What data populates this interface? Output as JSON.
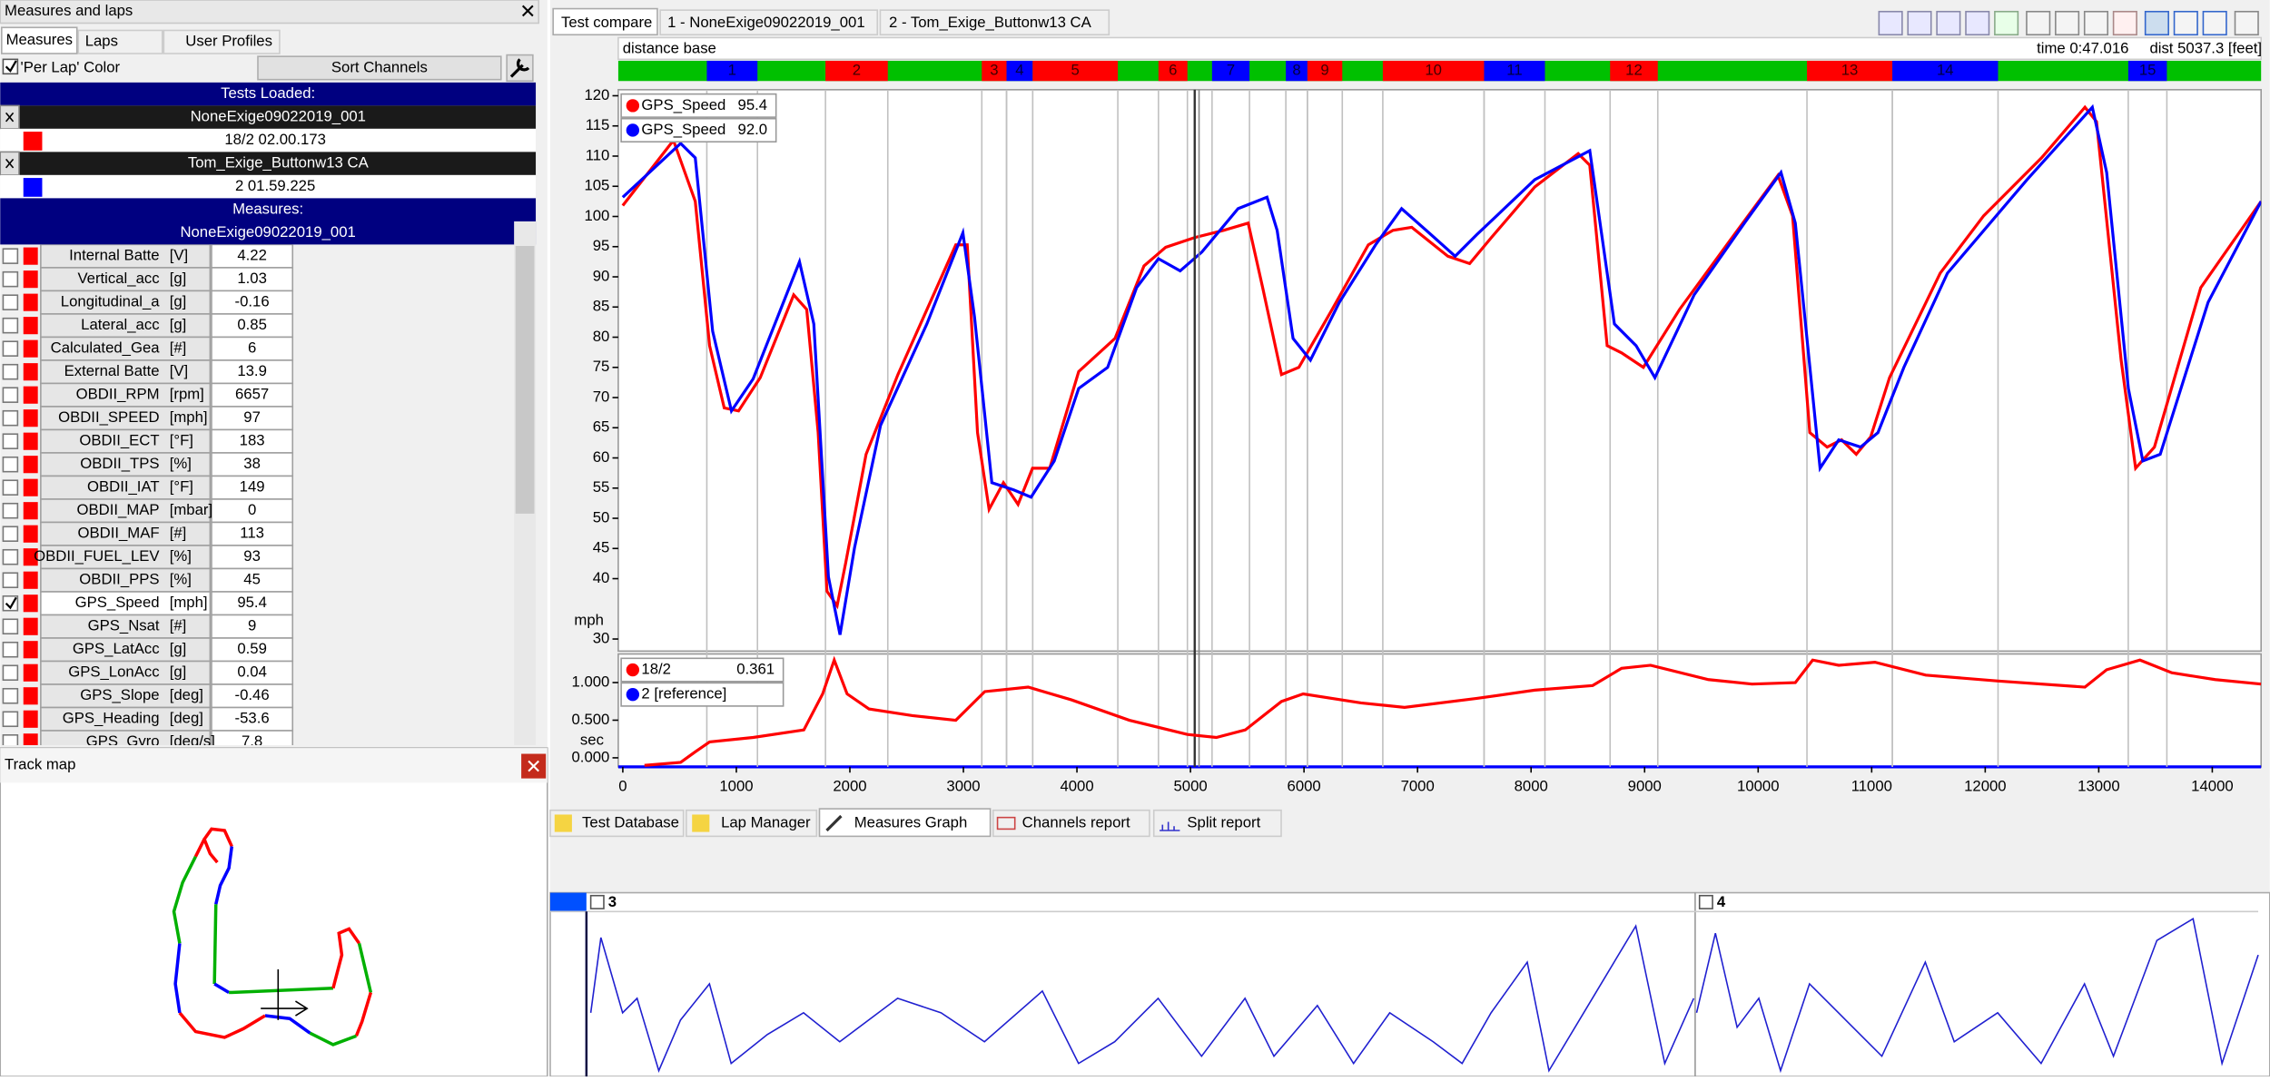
{
  "left_panel": {
    "title": "Measures and laps",
    "tabs": [
      "Measures",
      "Laps",
      "User Profiles"
    ],
    "per_lap_color": "'Per Lap' Color",
    "sort_button": "Sort Channels",
    "tests_loaded": "Tests Loaded:",
    "tests": [
      {
        "name": "NoneExige09022019_001",
        "time": "18/2 02.00.173",
        "color": "#ff0000"
      },
      {
        "name": "Tom_Exige_Buttonw13 CA",
        "time": "2 01.59.225",
        "color": "#0000ff"
      }
    ],
    "measures_header": "Measures:",
    "measures_test": "NoneExige09022019_001",
    "measures": [
      {
        "name": "Internal Batte",
        "unit": "[V]",
        "value": 4.22
      },
      {
        "name": "Vertical_acc",
        "unit": "[g]",
        "value": 1.03
      },
      {
        "name": "Longitudinal_a",
        "unit": "[g]",
        "value": -0.16
      },
      {
        "name": "Lateral_acc",
        "unit": "[g]",
        "value": 0.85
      },
      {
        "name": "Calculated_Gea",
        "unit": "[#]",
        "value": 6
      },
      {
        "name": "External Batte",
        "unit": "[V]",
        "value": 13.9
      },
      {
        "name": "OBDII_RPM",
        "unit": "[rpm]",
        "value": 6657
      },
      {
        "name": "OBDII_SPEED",
        "unit": "[mph]",
        "value": 97
      },
      {
        "name": "OBDII_ECT",
        "unit": "[°F]",
        "value": 183
      },
      {
        "name": "OBDII_TPS",
        "unit": "[%]",
        "value": 38
      },
      {
        "name": "OBDII_IAT",
        "unit": "[°F]",
        "value": 149
      },
      {
        "name": "OBDII_MAP",
        "unit": "[mbar]",
        "value": 0
      },
      {
        "name": "OBDII_MAF",
        "unit": "[#]",
        "value": 113
      },
      {
        "name": "OBDII_FUEL_LEV",
        "unit": "[%]",
        "value": 93
      },
      {
        "name": "OBDII_PPS",
        "unit": "[%]",
        "value": 45
      },
      {
        "name": "GPS_Speed",
        "unit": "[mph]",
        "value": 95.4,
        "selected": true
      },
      {
        "name": "GPS_Nsat",
        "unit": "[#]",
        "value": 9
      },
      {
        "name": "GPS_LatAcc",
        "unit": "[g]",
        "value": 0.59
      },
      {
        "name": "GPS_LonAcc",
        "unit": "[g]",
        "value": 0.04
      },
      {
        "name": "GPS_Slope",
        "unit": "[deg]",
        "value": -0.46
      },
      {
        "name": "GPS_Heading",
        "unit": "[deg]",
        "value": -53.6
      },
      {
        "name": "GPS_Gyro",
        "unit": "[deg/s]",
        "value": 7.8
      }
    ]
  },
  "track_map": {
    "title": "Track map"
  },
  "top_tabs": [
    "Test compare",
    "1 - NoneExige09022019_001",
    "2 - Tom_Exige_Buttonw13 CA"
  ],
  "header": {
    "base": "distance base",
    "time": "time 0:47.016",
    "dist": "dist 5037.3 [feet]"
  },
  "bottom_tabs": [
    "Test Database",
    "Lap Manager",
    "Measures Graph",
    "Channels report",
    "Split report"
  ],
  "panes": [
    "3",
    "4"
  ],
  "chart_data": [
    {
      "type": "line",
      "y_label": "mph",
      "xlim": [
        -40,
        14430
      ],
      "ylim": [
        28,
        121
      ],
      "yticks": [
        120,
        115,
        110,
        105,
        100,
        95,
        90,
        85,
        80,
        75,
        70,
        65,
        60,
        55,
        50,
        45,
        40,
        30
      ],
      "cursor_x": 5037.3,
      "sector_bar_color": "#00c000",
      "sectors": [
        {
          "label": "1",
          "start": 740,
          "end": 1186,
          "color": "#0000ff"
        },
        {
          "label": "2",
          "start": 1785,
          "end": 2334,
          "color": "#ff0000"
        },
        {
          "label": "3",
          "start": 3162,
          "end": 3380,
          "color": "#ff0000"
        },
        {
          "label": "4",
          "start": 3380,
          "end": 3610,
          "color": "#0000ff"
        },
        {
          "label": "5",
          "start": 3610,
          "end": 4360,
          "color": "#ff0000"
        },
        {
          "label": "6",
          "start": 4718,
          "end": 4973,
          "color": "#ff0000"
        },
        {
          "label": "7",
          "start": 5190,
          "end": 5520,
          "color": "#0000ff"
        },
        {
          "label": "8",
          "start": 5840,
          "end": 6030,
          "color": "#0000ff"
        },
        {
          "label": "9",
          "start": 6030,
          "end": 6337,
          "color": "#ff0000"
        },
        {
          "label": "10",
          "start": 6694,
          "end": 7586,
          "color": "#ff0000"
        },
        {
          "label": "11",
          "start": 7586,
          "end": 8122,
          "color": "#0000ff"
        },
        {
          "label": "12",
          "start": 8696,
          "end": 9116,
          "color": "#ff0000"
        },
        {
          "label": "13",
          "start": 10430,
          "end": 11182,
          "color": "#ff0000"
        },
        {
          "label": "14",
          "start": 11182,
          "end": 12113,
          "color": "#0000ff"
        },
        {
          "label": "15",
          "start": 13260,
          "end": 13600,
          "color": "#0000ff"
        }
      ],
      "series": [
        {
          "name": "GPS_Speed",
          "color": "#ff0000",
          "cursor_label": "95.4",
          "x": [
            0,
            446,
            638,
            765,
            893,
            1020,
            1211,
            1505,
            1620,
            1721,
            1798,
            1887,
            1964,
            2142,
            2423,
            2933,
            3034,
            3124,
            3226,
            3353,
            3481,
            3609,
            3761,
            4016,
            4335,
            4590,
            4781,
            5036,
            5291,
            5508,
            5636,
            5801,
            5954,
            6248,
            6566,
            6783,
            6949,
            7268,
            7459,
            7650,
            8033,
            8415,
            8517,
            8670,
            8798,
            8989,
            9308,
            9818,
            10175,
            10303,
            10455,
            10608,
            10736,
            10864,
            10991,
            11157,
            11603,
            11986,
            12496,
            12879,
            12980,
            13197,
            13325,
            13491,
            13899,
            14430
          ],
          "values": [
            101.8,
            112.6,
            102.5,
            78.6,
            68.3,
            67.8,
            73.3,
            87.0,
            84.6,
            64.2,
            37.9,
            35.5,
            42.7,
            60.6,
            73.8,
            95.3,
            95.3,
            64.2,
            51.5,
            55.9,
            52.3,
            58.3,
            58.3,
            74.3,
            79.8,
            91.8,
            94.9,
            96.5,
            97.7,
            98.9,
            88.2,
            73.8,
            75.0,
            84.6,
            95.3,
            97.7,
            98.2,
            93.4,
            92.2,
            96.5,
            104.9,
            110.4,
            108.5,
            78.6,
            77.4,
            75.0,
            84.6,
            97.7,
            106.8,
            100.1,
            64.2,
            61.8,
            63.0,
            60.6,
            63.5,
            73.3,
            90.6,
            100.1,
            109.7,
            118.1,
            115.7,
            76.2,
            58.3,
            61.8,
            88.2,
            102.5
          ]
        },
        {
          "name": "GPS_Speed",
          "color": "#0000ff",
          "cursor_label": "92.0",
          "x": [
            0,
            510,
            638,
            791,
            957,
            1148,
            1556,
            1683,
            1811,
            1913,
            2040,
            2270,
            2678,
            2996,
            3098,
            3251,
            3443,
            3596,
            3800,
            4016,
            4271,
            4526,
            4718,
            4909,
            5100,
            5419,
            5674,
            5763,
            5903,
            6057,
            6312,
            6630,
            6860,
            7077,
            7332,
            7523,
            8033,
            8517,
            8734,
            8925,
            9091,
            9436,
            9882,
            10201,
            10328,
            10545,
            10710,
            10902,
            11055,
            11284,
            11667,
            12369,
            12943,
            13070,
            13261,
            13389,
            13542,
            13963,
            14430
          ],
          "values": [
            103.2,
            112.1,
            109.7,
            81.0,
            67.8,
            73.1,
            92.5,
            82.2,
            40.3,
            30.7,
            45.1,
            65.4,
            82.2,
            97.3,
            83.4,
            55.9,
            54.7,
            53.5,
            59.5,
            71.5,
            75.0,
            88.2,
            93.0,
            91.0,
            94.1,
            101.3,
            103.2,
            97.7,
            79.8,
            76.2,
            85.8,
            95.3,
            101.3,
            97.7,
            93.4,
            97.0,
            106.1,
            110.9,
            82.2,
            78.6,
            73.3,
            87.0,
            99.0,
            107.3,
            98.9,
            58.3,
            63.0,
            61.8,
            64.2,
            75.0,
            90.6,
            106.1,
            118.1,
            107.3,
            71.5,
            59.5,
            60.6,
            85.8,
            102.5
          ]
        }
      ]
    },
    {
      "type": "line",
      "y_label": "sec",
      "xlim": [
        -40,
        14430
      ],
      "ylim": [
        -0.12,
        1.38
      ],
      "yticks": [
        {
          "value": 0,
          "label": "0.000"
        },
        {
          "value": 0.5,
          "label": "0.500"
        },
        {
          "value": 1,
          "label": "1.000"
        }
      ],
      "xticks": [
        0,
        1000,
        2000,
        3000,
        4000,
        5000,
        6000,
        7000,
        8000,
        9000,
        10000,
        11000,
        12000,
        13000,
        14000
      ],
      "series": [
        {
          "name": "18/2",
          "color": "#ff0000",
          "cursor_label": "0.361",
          "x": [
            191,
            510,
            638,
            765,
            1148,
            1594,
            1760,
            1862,
            1976,
            2168,
            2551,
            2933,
            3188,
            3570,
            3952,
            4462,
            4973,
            5228,
            5483,
            5801,
            5993,
            6502,
            6885,
            7523,
            8033,
            8542,
            8798,
            9053,
            9563,
            9946,
            10328,
            10481,
            10710,
            11029,
            11476,
            12113,
            12879,
            13070,
            13363,
            13643,
            14026,
            14430
          ],
          "values": [
            -0.1,
            -0.06,
            0.08,
            0.21,
            0.27,
            0.37,
            0.85,
            1.3,
            0.85,
            0.65,
            0.56,
            0.5,
            0.88,
            0.94,
            0.77,
            0.5,
            0.31,
            0.27,
            0.37,
            0.75,
            0.85,
            0.73,
            0.67,
            0.79,
            0.9,
            0.96,
            1.19,
            1.23,
            1.04,
            0.98,
            1.0,
            1.3,
            1.23,
            1.27,
            1.1,
            1.02,
            0.94,
            1.17,
            1.3,
            1.13,
            1.04,
            0.98
          ]
        },
        {
          "name": "2 [reference]",
          "color": "#0000ff"
        }
      ]
    }
  ]
}
